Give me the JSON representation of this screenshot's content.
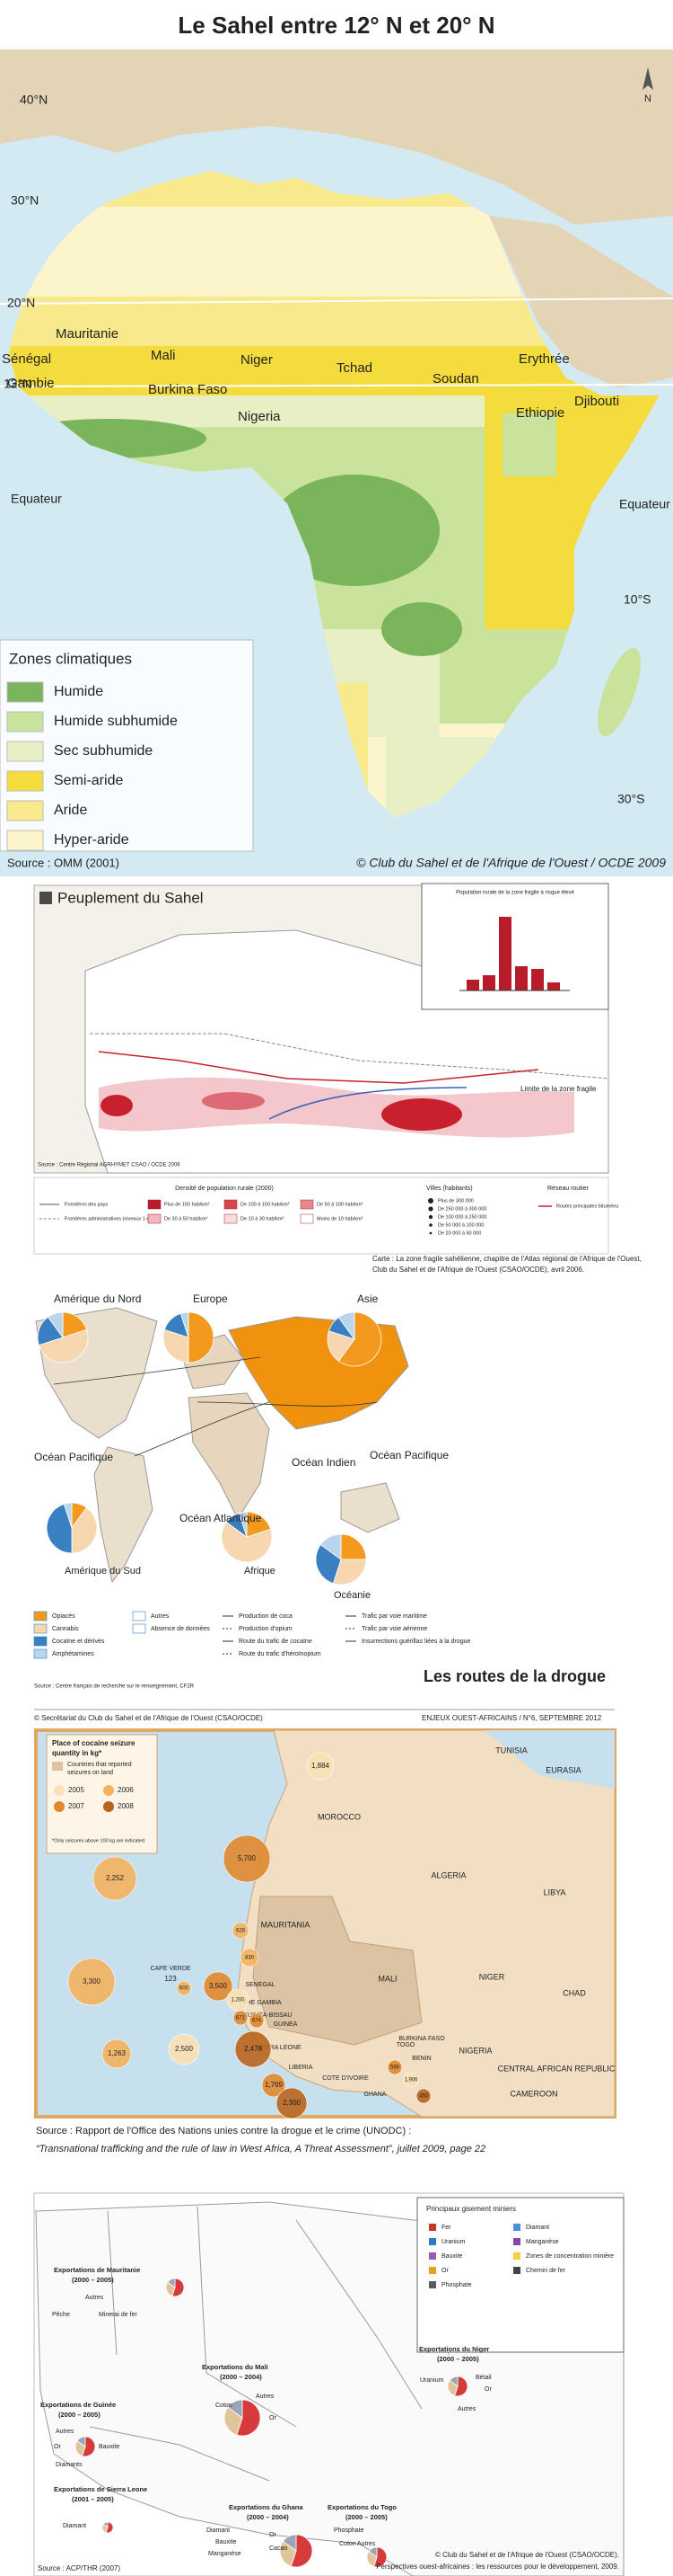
{
  "sahel_map": {
    "title": "Le Sahel entre 12° N et 20° N",
    "north": "N",
    "latitudes": [
      "40°N",
      "30°N",
      "20°N",
      "12°N",
      "Equateur",
      "Equateur",
      "10°S",
      "30°S"
    ],
    "countries": [
      "Mauritanie",
      "Mali",
      "Niger",
      "Tchad",
      "Soudan",
      "Erythrée",
      "Sénégal",
      "Gambie",
      "Burkina Faso",
      "Nigeria",
      "Ethiopie",
      "Djibouti"
    ],
    "legend_title": "Zones climatiques",
    "legend": [
      {
        "label": "Humide",
        "color": "#7ab55c"
      },
      {
        "label": "Humide subhumide",
        "color": "#c9e29c"
      },
      {
        "label": "Sec subhumide",
        "color": "#e9efc4"
      },
      {
        "label": "Semi-aride",
        "color": "#f5dc3e"
      },
      {
        "label": "Aride",
        "color": "#f8e98c"
      },
      {
        "label": "Hyper-aride",
        "color": "#fcf5cc"
      }
    ],
    "source": "Source : OMM (2001)",
    "credit": "© Club  du Sahel et de l'Afrique de l'Ouest / OCDE 2009"
  },
  "population_map": {
    "title": "Peuplement du Sahel",
    "inset_title": "Population rurale de la zone fragile à risque élevé",
    "zone_label": "Limite de la zone fragile",
    "source": "Source : Centre Régional AGRHYMET CSAO / OCDE 2006",
    "legend_groups": [
      {
        "title": "Densité de population rurale (2000)",
        "items": [
          "Plus de 150 hab/km²",
          "De 100 à 150 hab/km²",
          "De 50 à 100 hab/km²",
          "De 30 à 50 hab/km²",
          "De 10 à 30 hab/km²",
          "Moins de 10 hab/km²"
        ]
      },
      {
        "title": "Villes (habitants)",
        "items": [
          "Plus de 300 000",
          "De 250 000 à 300 000",
          "De 100 000 à 250 000",
          "De 50 000 à 100 000",
          "De 20 000 à 50 000"
        ]
      },
      {
        "title": "Réseau routier",
        "items": [
          "Routes principales bitumées"
        ]
      }
    ],
    "boundaries": [
      "Frontières des pays",
      "Frontières administratives (niveaux 1 et 2)"
    ],
    "caption": [
      "Carte : La zone fragile sahélienne, chapitre de l'Atlas régional de l'Afrique de l'Ouest,",
      "Club du Sahel et de l'Afrique de l'Ouest (CSAO/OCDE), avril 2006."
    ]
  },
  "drug_map": {
    "title": "Les routes de la drogue",
    "regions": [
      "Amérique du Nord",
      "Europe",
      "Asie",
      "Océan Pacifique",
      "Océan Pacifique",
      "Océan Indien",
      "Océan Atlantique",
      "Amérique du Sud",
      "Afrique",
      "Océanie"
    ],
    "legend": [
      {
        "label": "Opiacés",
        "color": "#f39a1e"
      },
      {
        "label": "Cannabis",
        "color": "#f6d7b0"
      },
      {
        "label": "Cocaïne et dérivés",
        "color": "#3a7fc1"
      },
      {
        "label": "Amphétamines",
        "color": "#b9d5ec"
      },
      {
        "label": "Autres",
        "color": "#ffffff"
      },
      {
        "label": "Absence de données",
        "color": "#ffffff"
      }
    ],
    "legend_symbols": [
      "Production de coca",
      "Production d'opium",
      "Route du trafic de cocaïne",
      "Route du trafic d'héroïnopium",
      "Trafic par voie maritime",
      "Trafic par voie aérienne",
      "Insurrections guérillas liées à la drogue"
    ],
    "source": "Source : Centre français de recherche sur le renseignement, CF2R"
  },
  "cocaine_map": {
    "header_left": "© Secrétariat du Club du Sahel et de l'Afrique de l'Ouest (CSAO/OCDE)",
    "header_right": "ENJEUX OUEST-AFRICAINS / N°6, SEPTEMBRE 2012",
    "legend_title": [
      "Place of cocaine seizure",
      "quantity in kg*"
    ],
    "legend_note": [
      "Countries that reported",
      "seizures on land"
    ],
    "years": [
      {
        "label": "2005",
        "color": "#fbe0b4"
      },
      {
        "label": "2006",
        "color": "#f3b35e"
      },
      {
        "label": "2007",
        "color": "#e0882c"
      },
      {
        "label": "2008",
        "color": "#b9651c"
      }
    ],
    "legend_footnote": "*Only seizures above 100 kg are indicated",
    "countries": [
      "EURASIA",
      "TUNISIA",
      "MOROCCO",
      "ALGERIA",
      "LIBYA",
      "MAURITANIA",
      "MALI",
      "NIGER",
      "CHAD",
      "CAPE VERDE",
      "SENEGAL",
      "THE GAMBIA",
      "GUINEA-BISSAU",
      "GUINEA",
      "SIERRA LEONE",
      "LIBERIA",
      "COTE D'IVOIRE",
      "BURKINA FASO",
      "GHANA",
      "TOGO",
      "BENIN",
      "NIGERIA",
      "CENTRAL AFRICAN REPUBLIC",
      "CAMEROON"
    ],
    "cape_verde_value": "123",
    "bubbles": [
      "1,884",
      "5,700",
      "2,252",
      "3,300",
      "1,263",
      "2,500",
      "628",
      "830",
      "3,500",
      "1,200",
      "600",
      "671",
      "674",
      "2,478",
      "1,769",
      "2,300",
      "588",
      "1,906",
      "450"
    ],
    "source": [
      "Source : Rapport de l'Office des Nations unies contre la drogue et le crime (UNODC) :",
      "“Transnational trafficking and the rule of law in West Africa, A Threat Assessment”, juillet 2009, page 22"
    ]
  },
  "mining_map": {
    "legend_title": "Principaux gisement miniers",
    "legend": [
      "Fer",
      "Uranium",
      "Bauxite",
      "Or",
      "Phosphate",
      "Diamant",
      "Manganèse",
      "Zones de concentration minière",
      "Chemin de fer"
    ],
    "exports": [
      {
        "title": [
          "Exportations de Mauritanie",
          "(2000 – 2005)"
        ],
        "items": [
          "Autres",
          "Pêche",
          "Minerai de fer"
        ]
      },
      {
        "title": [
          "Exportations du Mali",
          "(2000 – 2004)"
        ],
        "items": [
          "Autres",
          "Coton",
          "Or"
        ]
      },
      {
        "title": [
          "Exportations du Niger",
          "(2000 – 2005)"
        ],
        "items": [
          "Uranium",
          "Bétail",
          "Or",
          "Autres"
        ]
      },
      {
        "title": [
          "Exportations de Guinée",
          "(2000 – 2005)"
        ],
        "items": [
          "Autres",
          "Or",
          "Diamants",
          "Bauxite"
        ]
      },
      {
        "title": [
          "Exportations de Sierra Leone",
          "(2001 – 2005)"
        ],
        "items": [
          "Diamant"
        ]
      },
      {
        "title": [
          "Exportations du Ghana",
          "(2000 – 2004)"
        ],
        "items": [
          "Diamant",
          "Bauxite",
          "Manganèse",
          "Or",
          "Cacao"
        ]
      },
      {
        "title": [
          "Exportations du Togo",
          "(2000 – 2005)"
        ],
        "items": [
          "Phosphate",
          "Coton",
          "Autres"
        ]
      }
    ],
    "source": "Source : ACP/THR (2007)",
    "credit": [
      "© Club du Sahel et de l'Afrique de l'Ouest (CSAO/OCDE).",
      "Perspectives ouest-africaines : les ressources pour le développement, 2009."
    ]
  }
}
